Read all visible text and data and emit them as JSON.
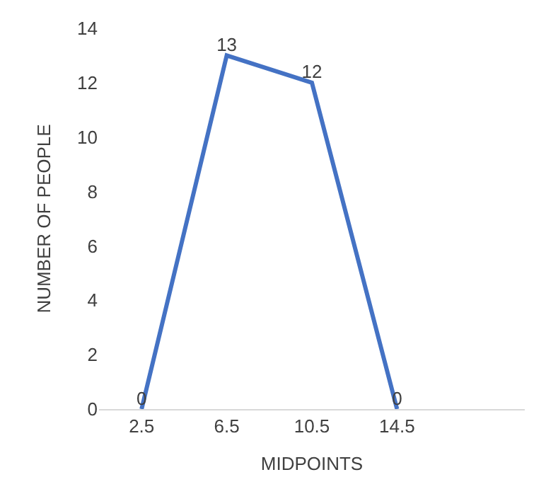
{
  "chart_data": {
    "type": "line",
    "xlabel": "MIDPOINTS",
    "ylabel": "NUMBER OF PEOPLE",
    "categories": [
      "2.5",
      "6.5",
      "10.5",
      "14.5",
      null
    ],
    "series": [
      {
        "color": "#4472c4",
        "values": [
          0,
          13,
          12,
          0,
          null
        ]
      }
    ],
    "ylim": [
      0,
      14
    ],
    "yticks": [
      0,
      2,
      4,
      6,
      8,
      10,
      12,
      14
    ],
    "grid": false,
    "data_labels": true,
    "marker": "none",
    "line_style": "solid"
  }
}
